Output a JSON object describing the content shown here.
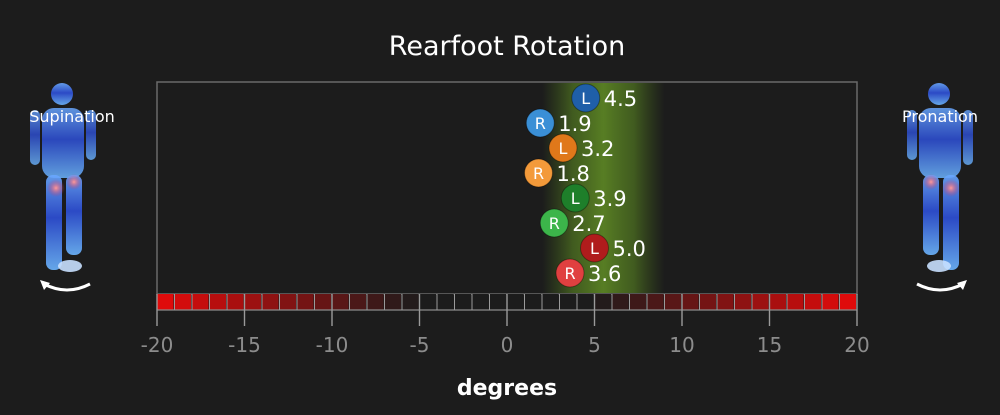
{
  "chart_data": {
    "type": "scatter",
    "title": "Rearfoot Rotation",
    "xlabel": "degrees",
    "xlim": [
      -20,
      20
    ],
    "xticks": [
      -20,
      -15,
      -10,
      -5,
      0,
      5,
      10,
      15,
      20
    ],
    "normal_band": [
      2,
      9
    ],
    "left_label": "Supination",
    "right_label": "Pronation",
    "points": [
      {
        "side": "L",
        "value": 4.5,
        "label": "4.5",
        "color": "#1f5fa8"
      },
      {
        "side": "R",
        "value": 1.9,
        "label": "1.9",
        "color": "#3a8fd6"
      },
      {
        "side": "L",
        "value": 3.2,
        "label": "3.2",
        "color": "#e0781a"
      },
      {
        "side": "R",
        "value": 1.8,
        "label": "1.8",
        "color": "#f39a3a"
      },
      {
        "side": "L",
        "value": 3.9,
        "label": "3.9",
        "color": "#1e7f2a"
      },
      {
        "side": "R",
        "value": 2.7,
        "label": "2.7",
        "color": "#3cb54a"
      },
      {
        "side": "L",
        "value": 5.0,
        "label": "5.0",
        "color": "#b01c1c"
      },
      {
        "side": "R",
        "value": 3.6,
        "label": "3.6",
        "color": "#e04040"
      }
    ]
  }
}
